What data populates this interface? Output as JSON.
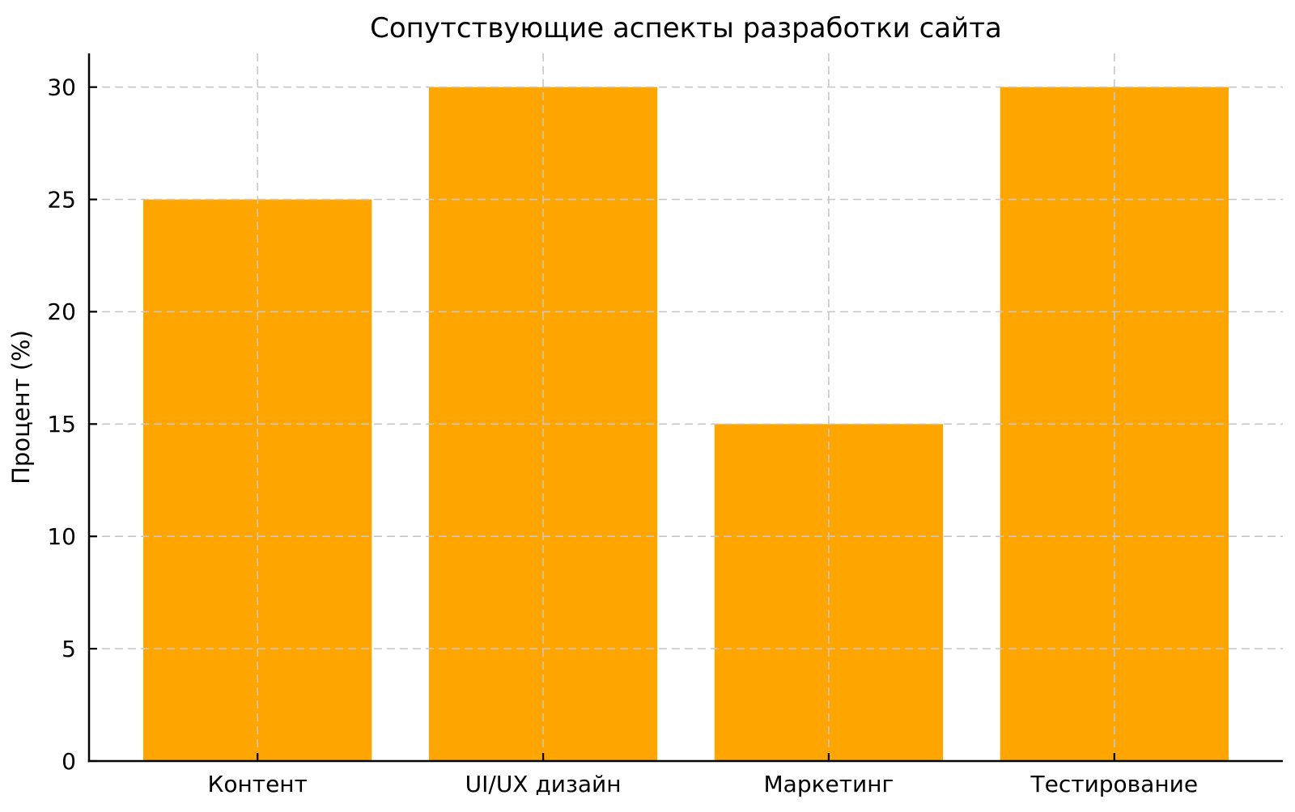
{
  "figure": {
    "background": "#ffffff"
  },
  "chart_data": {
    "type": "bar",
    "title": "Сопутствующие аспекты разработки сайта",
    "categories": [
      "Контент",
      "UI/UX дизайн",
      "Маркетинг",
      "Тестирование"
    ],
    "values": [
      25,
      30,
      15,
      30
    ],
    "xlabel": "",
    "ylabel": "Процент (%)",
    "ylim": [
      0,
      31.5
    ],
    "yticks": [
      0,
      5,
      10,
      15,
      20,
      25,
      30
    ],
    "bar_color": "#FFA500",
    "grid": true,
    "grid_color": "#c7c7c7",
    "grid_style": "dashed",
    "axis_color": "#000000",
    "legend_position": "none"
  }
}
